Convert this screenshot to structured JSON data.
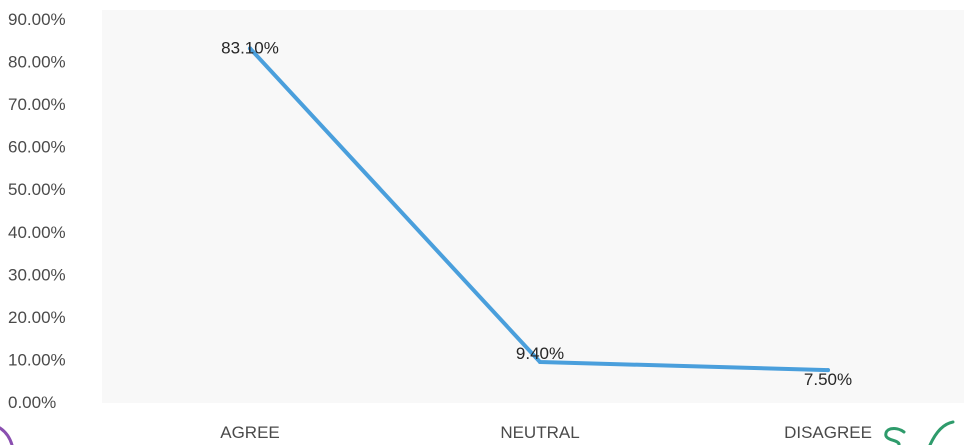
{
  "chart_data": {
    "type": "line",
    "categories": [
      "AGREE",
      "NEUTRAL",
      "DISAGREE"
    ],
    "series": [
      {
        "values": [
          83.1,
          9.4,
          7.5
        ]
      }
    ],
    "data_labels": [
      "83.10%",
      "9.40%",
      "7.50%"
    ],
    "ylim": [
      0,
      90
    ],
    "y_ticks": [
      0,
      10,
      20,
      30,
      40,
      50,
      60,
      70,
      80,
      90
    ],
    "y_tick_format": "percent_2dp",
    "grid": false,
    "legend": "none",
    "colors": {
      "line": "#4a9fdc",
      "plot_background": "#f8f8f8",
      "ink_mark_green": "#2e9b6b",
      "ink_mark_purple": "#8a4fb0"
    }
  }
}
